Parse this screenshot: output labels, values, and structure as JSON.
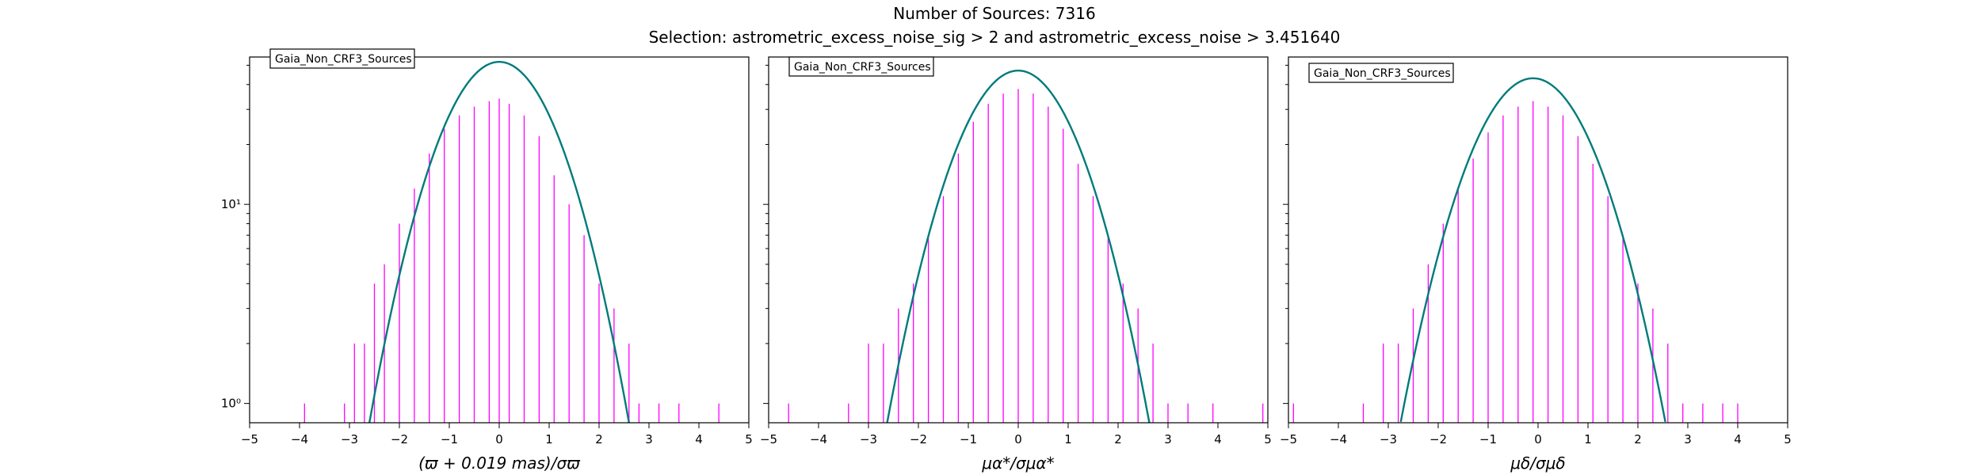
{
  "figure": {
    "title": "Number of Sources: 7316",
    "subtitle": "Selection: astrometric_excess_noise_sig > 2 and astrometric_excess_noise > 3.451640"
  },
  "colors": {
    "histogram": "#ff00ff",
    "fit": "#007b7b"
  },
  "chart_data": [
    {
      "type": "bar",
      "xlabel": "(ϖ + 0.019 mas)/σϖ",
      "xlim": [
        -5,
        5
      ],
      "ylim": [
        0.8,
        55
      ],
      "yscale": "log",
      "xticks": [
        "−5",
        "−4",
        "−3",
        "−2",
        "−1",
        "0",
        "1",
        "2",
        "3",
        "4",
        "5"
      ],
      "yticks": [
        {
          "value": 1,
          "label": "10⁰"
        },
        {
          "value": 10,
          "label": "10¹"
        }
      ],
      "legend": "Gaia_Non_CRF3_Sources",
      "legend_position": "top-left",
      "fit_peak": 52,
      "fit_sigma": 0.9,
      "fit_mu": 0.0,
      "hist_x": [
        -3.9,
        -3.1,
        -2.9,
        -2.7,
        -2.5,
        -2.3,
        -2.0,
        -1.7,
        -1.4,
        -1.1,
        -0.8,
        -0.5,
        -0.2,
        0.0,
        0.2,
        0.5,
        0.8,
        1.1,
        1.4,
        1.7,
        2.0,
        2.3,
        2.6,
        2.8,
        3.2,
        3.6,
        4.4
      ],
      "hist_y": [
        1,
        1,
        2,
        2,
        4,
        5,
        8,
        12,
        18,
        24,
        28,
        31,
        33,
        34,
        32,
        28,
        22,
        14,
        10,
        7,
        4,
        3,
        2,
        1,
        1,
        1,
        1
      ]
    },
    {
      "type": "bar",
      "xlabel": "μα*/σμα*",
      "xlim": [
        -5,
        5
      ],
      "ylim": [
        0.8,
        55
      ],
      "yscale": "log",
      "xticks": [
        "−5",
        "−4",
        "−3",
        "−2",
        "−1",
        "0",
        "1",
        "2",
        "3",
        "4",
        "5"
      ],
      "yticks": [
        {
          "value": 1,
          "label": ""
        },
        {
          "value": 10,
          "label": ""
        }
      ],
      "legend": "Gaia_Non_CRF3_Sources",
      "legend_position": "top-left",
      "fit_peak": 47,
      "fit_sigma": 0.92,
      "fit_mu": 0.0,
      "hist_x": [
        -4.6,
        -3.4,
        -3.0,
        -2.7,
        -2.4,
        -2.1,
        -1.8,
        -1.5,
        -1.2,
        -0.9,
        -0.6,
        -0.3,
        0.0,
        0.3,
        0.6,
        0.9,
        1.2,
        1.5,
        1.8,
        2.1,
        2.4,
        2.7,
        3.0,
        3.4,
        3.9,
        4.9
      ],
      "hist_y": [
        1,
        1,
        2,
        2,
        3,
        4,
        7,
        11,
        18,
        26,
        32,
        36,
        38,
        36,
        31,
        24,
        16,
        11,
        7,
        4,
        3,
        2,
        1,
        1,
        1,
        1
      ]
    },
    {
      "type": "bar",
      "xlabel": "μδ/σμδ",
      "xlim": [
        -5,
        5
      ],
      "ylim": [
        0.8,
        55
      ],
      "yscale": "log",
      "xticks": [
        "−5",
        "−4",
        "−3",
        "−2",
        "−1",
        "0",
        "1",
        "2",
        "3",
        "4",
        "5"
      ],
      "yticks": [
        {
          "value": 1,
          "label": ""
        },
        {
          "value": 10,
          "label": ""
        }
      ],
      "legend": "Gaia_Non_CRF3_Sources",
      "legend_position": "top-left",
      "fit_peak": 43,
      "fit_sigma": 0.94,
      "fit_mu": -0.1,
      "hist_x": [
        -4.9,
        -3.5,
        -3.1,
        -2.8,
        -2.5,
        -2.2,
        -1.9,
        -1.6,
        -1.3,
        -1.0,
        -0.7,
        -0.4,
        -0.1,
        0.2,
        0.5,
        0.8,
        1.1,
        1.4,
        1.7,
        2.0,
        2.3,
        2.6,
        2.9,
        3.3,
        3.7,
        4.0
      ],
      "hist_y": [
        1,
        1,
        2,
        2,
        3,
        5,
        8,
        12,
        17,
        23,
        28,
        31,
        33,
        31,
        28,
        22,
        16,
        11,
        7,
        4,
        3,
        2,
        1,
        1,
        1,
        1
      ]
    }
  ]
}
